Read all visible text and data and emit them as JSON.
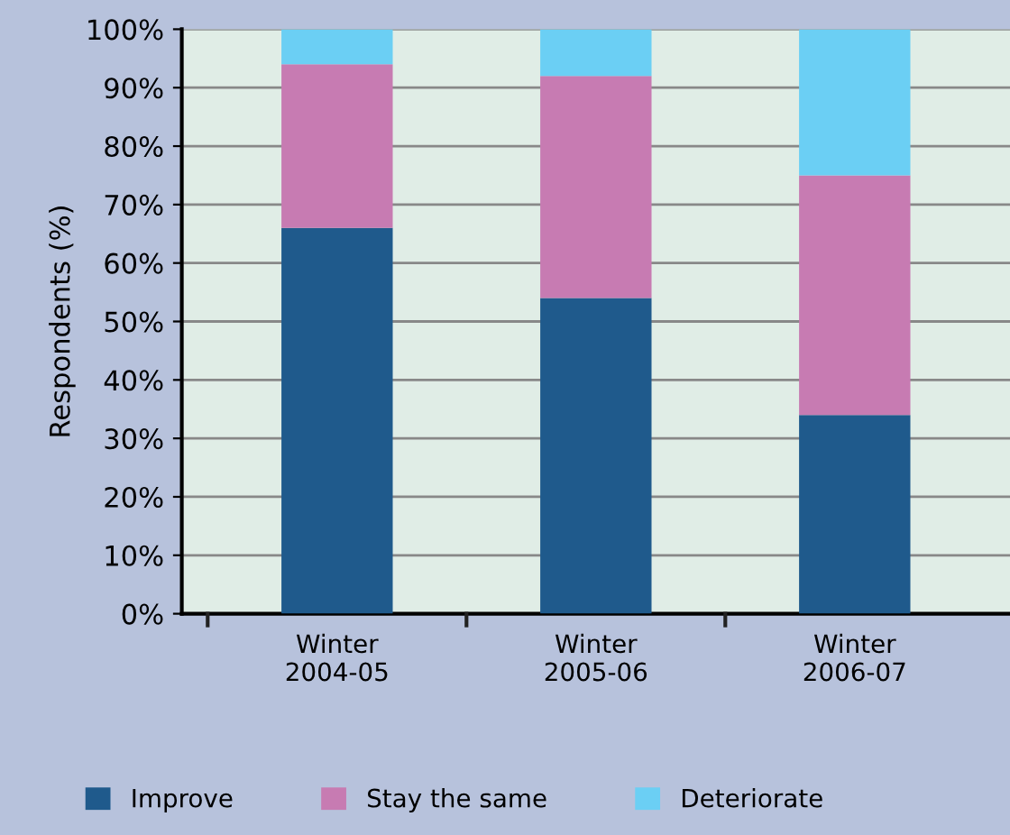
{
  "chart_data": {
    "type": "bar",
    "stacked": true,
    "ylabel": "Respondents (%)",
    "categories": [
      "Winter\n2004-05",
      "Winter\n2005-06",
      "Winter\n2006-07"
    ],
    "series": [
      {
        "name": "Improve",
        "color": "#1f5a8c",
        "values": [
          66,
          54,
          34
        ]
      },
      {
        "name": "Stay the same",
        "color": "#c77bb2",
        "values": [
          28,
          38,
          41
        ]
      },
      {
        "name": "Deteriorate",
        "color": "#6bcff4",
        "values": [
          6,
          8,
          25
        ]
      }
    ],
    "ylim": [
      0,
      100
    ],
    "yticks": [
      {
        "value": 0,
        "label": "0%"
      },
      {
        "value": 10,
        "label": "10%"
      },
      {
        "value": 20,
        "label": "20%"
      },
      {
        "value": 30,
        "label": "30%"
      },
      {
        "value": 40,
        "label": "40%"
      },
      {
        "value": 50,
        "label": "50%"
      },
      {
        "value": 60,
        "label": "60%"
      },
      {
        "value": 70,
        "label": "70%"
      },
      {
        "value": 80,
        "label": "80%"
      },
      {
        "value": 90,
        "label": "90%"
      },
      {
        "value": 100,
        "label": "100%"
      }
    ],
    "grid": "y",
    "legend": "bottom"
  }
}
